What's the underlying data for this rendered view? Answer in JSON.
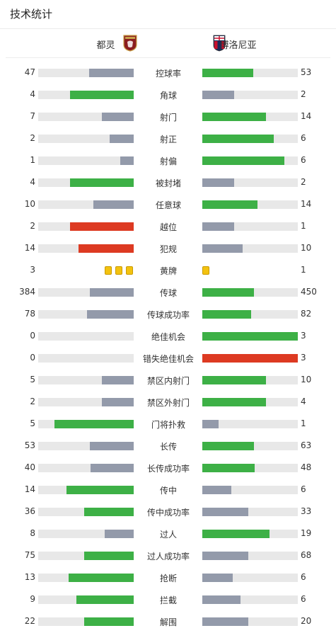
{
  "title": "技术统计",
  "teams": {
    "home": "都灵",
    "away": "博洛尼亚"
  },
  "colors": {
    "green": "#3db046",
    "gray": "#939aaa",
    "red": "#dd3a22",
    "yellow": "#f3c20f",
    "track": "#e8e8e8"
  },
  "stats": [
    {
      "label": "控球率",
      "home": "47",
      "away": "53",
      "home_frac": 0.47,
      "away_frac": 0.53,
      "home_color": "gray",
      "away_color": "green"
    },
    {
      "label": "角球",
      "home": "4",
      "away": "2",
      "home_frac": 0.67,
      "away_frac": 0.33,
      "home_color": "green",
      "away_color": "gray"
    },
    {
      "label": "射门",
      "home": "7",
      "away": "14",
      "home_frac": 0.33,
      "away_frac": 0.67,
      "home_color": "gray",
      "away_color": "green"
    },
    {
      "label": "射正",
      "home": "2",
      "away": "6",
      "home_frac": 0.25,
      "away_frac": 0.75,
      "home_color": "gray",
      "away_color": "green"
    },
    {
      "label": "射偏",
      "home": "1",
      "away": "6",
      "home_frac": 0.14,
      "away_frac": 0.86,
      "home_color": "gray",
      "away_color": "green"
    },
    {
      "label": "被封堵",
      "home": "4",
      "away": "2",
      "home_frac": 0.67,
      "away_frac": 0.33,
      "home_color": "green",
      "away_color": "gray"
    },
    {
      "label": "任意球",
      "home": "10",
      "away": "14",
      "home_frac": 0.42,
      "away_frac": 0.58,
      "home_color": "gray",
      "away_color": "green"
    },
    {
      "label": "越位",
      "home": "2",
      "away": "1",
      "home_frac": 0.67,
      "away_frac": 0.33,
      "home_color": "red",
      "away_color": "gray"
    },
    {
      "label": "犯规",
      "home": "14",
      "away": "10",
      "home_frac": 0.58,
      "away_frac": 0.42,
      "home_color": "red",
      "away_color": "gray"
    },
    {
      "label": "黄牌",
      "home": "3",
      "away": "1",
      "cards": true,
      "home_cards": 3,
      "away_cards": 1
    },
    {
      "label": "传球",
      "home": "384",
      "away": "450",
      "home_frac": 0.46,
      "away_frac": 0.54,
      "home_color": "gray",
      "away_color": "green"
    },
    {
      "label": "传球成功率",
      "home": "78",
      "away": "82",
      "home_frac": 0.49,
      "away_frac": 0.51,
      "home_color": "gray",
      "away_color": "green"
    },
    {
      "label": "绝佳机会",
      "home": "0",
      "away": "3",
      "home_frac": 0,
      "away_frac": 1,
      "home_color": "gray",
      "away_color": "green"
    },
    {
      "label": "错失绝佳机会",
      "home": "0",
      "away": "3",
      "home_frac": 0,
      "away_frac": 1,
      "home_color": "gray",
      "away_color": "red"
    },
    {
      "label": "禁区内射门",
      "home": "5",
      "away": "10",
      "home_frac": 0.33,
      "away_frac": 0.67,
      "home_color": "gray",
      "away_color": "green"
    },
    {
      "label": "禁区外射门",
      "home": "2",
      "away": "4",
      "home_frac": 0.33,
      "away_frac": 0.67,
      "home_color": "gray",
      "away_color": "green"
    },
    {
      "label": "门将扑救",
      "home": "5",
      "away": "1",
      "home_frac": 0.83,
      "away_frac": 0.17,
      "home_color": "green",
      "away_color": "gray"
    },
    {
      "label": "长传",
      "home": "53",
      "away": "63",
      "home_frac": 0.46,
      "away_frac": 0.54,
      "home_color": "gray",
      "away_color": "green"
    },
    {
      "label": "长传成功率",
      "home": "40",
      "away": "48",
      "home_frac": 0.45,
      "away_frac": 0.55,
      "home_color": "gray",
      "away_color": "green"
    },
    {
      "label": "传中",
      "home": "14",
      "away": "6",
      "home_frac": 0.7,
      "away_frac": 0.3,
      "home_color": "green",
      "away_color": "gray"
    },
    {
      "label": "传中成功率",
      "home": "36",
      "away": "33",
      "home_frac": 0.52,
      "away_frac": 0.48,
      "home_color": "green",
      "away_color": "gray"
    },
    {
      "label": "过人",
      "home": "8",
      "away": "19",
      "home_frac": 0.3,
      "away_frac": 0.7,
      "home_color": "gray",
      "away_color": "green"
    },
    {
      "label": "过人成功率",
      "home": "75",
      "away": "68",
      "home_frac": 0.52,
      "away_frac": 0.48,
      "home_color": "green",
      "away_color": "gray"
    },
    {
      "label": "抢断",
      "home": "13",
      "away": "6",
      "home_frac": 0.68,
      "away_frac": 0.32,
      "home_color": "green",
      "away_color": "gray"
    },
    {
      "label": "拦截",
      "home": "9",
      "away": "6",
      "home_frac": 0.6,
      "away_frac": 0.4,
      "home_color": "green",
      "away_color": "gray"
    },
    {
      "label": "解围",
      "home": "22",
      "away": "20",
      "home_frac": 0.52,
      "away_frac": 0.48,
      "home_color": "green",
      "away_color": "gray"
    }
  ]
}
